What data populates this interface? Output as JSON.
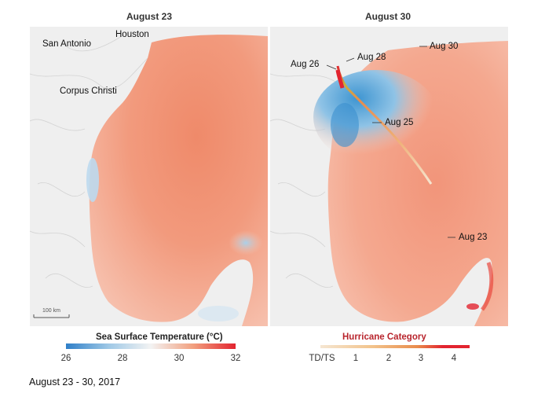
{
  "panels": [
    {
      "title": "August 23"
    },
    {
      "title": "August 30"
    }
  ],
  "left_map": {
    "cities": [
      "San Antonio",
      "Houston",
      "Corpus Christi"
    ],
    "scale_bar": "100 km"
  },
  "right_map": {
    "track_labels": [
      "Aug 26",
      "Aug 28",
      "Aug 30",
      "Aug 25",
      "Aug 23"
    ]
  },
  "sst_legend": {
    "title": "Sea Surface Temperature (°C)",
    "ticks": [
      "26",
      "28",
      "30",
      "32"
    ],
    "colors": [
      "#2f7fc8",
      "#9ec8e6",
      "#f3f3f3",
      "#f2a07f",
      "#e2242f"
    ]
  },
  "hurricane_legend": {
    "title": "Hurricane Category",
    "ticks": [
      "TD/TS",
      "1",
      "2",
      "3",
      "4"
    ],
    "colors": [
      "#f5e6d2",
      "#f2c38b",
      "#e98c4c",
      "#e2242f"
    ]
  },
  "caption": "August 23 - 30, 2017"
}
